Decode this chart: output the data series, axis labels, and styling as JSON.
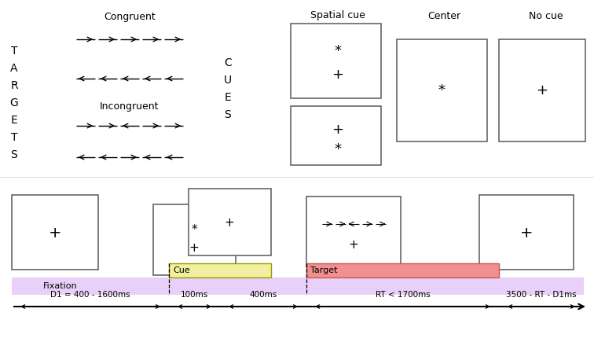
{
  "bg_color": "#ffffff",
  "box_edge_color": "#666666",
  "fixation_bar_color": "#e8d0f8",
  "cue_bar_color": "#f0f0a0",
  "target_bar_color": "#f09090",
  "congruent_label": "Congruent",
  "incongruent_label": "Incongruent",
  "spatial_cue_label": "Spatial cue",
  "center_label": "Center",
  "no_cue_label": "No cue",
  "fixation_label": "Fixation",
  "cue_label": "Cue",
  "target_label": "Target",
  "targets_label": "TARGETS",
  "cues_label": "CUES",
  "timing_labels": [
    "D1 = 400 - 1600ms",
    "100ms",
    "400ms",
    "RT < 1700ms",
    "3500 - RT - D1ms"
  ]
}
